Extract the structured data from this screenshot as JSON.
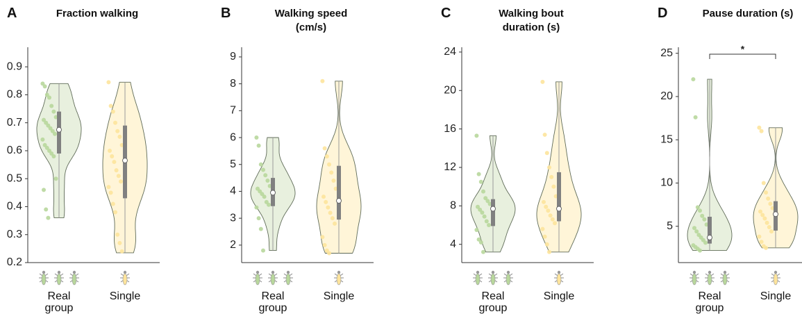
{
  "chart_data": [
    {
      "type": "violin",
      "label": "A",
      "title": "Fraction walking",
      "categories": [
        "Real\ngroup",
        "Single"
      ],
      "ylim": [
        0.2,
        0.97
      ],
      "yticks": [
        0.2,
        0.3,
        0.4,
        0.5,
        0.6,
        0.7,
        0.8,
        0.9
      ],
      "series": [
        {
          "name": "Real group",
          "color": "#b8d79c",
          "fill": "#e8f0de",
          "median": 0.675,
          "q1": 0.59,
          "q3": 0.74,
          "min": 0.36,
          "max": 0.84,
          "points": [
            0.84,
            0.83,
            0.8,
            0.79,
            0.76,
            0.74,
            0.72,
            0.71,
            0.7,
            0.69,
            0.68,
            0.67,
            0.66,
            0.64,
            0.62,
            0.61,
            0.6,
            0.59,
            0.58,
            0.5,
            0.46,
            0.39,
            0.36
          ]
        },
        {
          "name": "Single",
          "color": "#fde49c",
          "fill": "#fff5d8",
          "median": 0.565,
          "q1": 0.43,
          "q3": 0.69,
          "min": 0.235,
          "max": 0.845,
          "points": [
            0.845,
            0.76,
            0.74,
            0.7,
            0.67,
            0.65,
            0.62,
            0.6,
            0.58,
            0.56,
            0.53,
            0.51,
            0.49,
            0.47,
            0.45,
            0.41,
            0.38,
            0.3,
            0.27,
            0.24
          ]
        }
      ]
    },
    {
      "type": "violin",
      "label": "B",
      "title": "Walking speed\n(cm/s)",
      "categories": [
        "Real\ngroup",
        "Single"
      ],
      "ylim": [
        1.35,
        9.36
      ],
      "yticks": [
        2,
        3,
        4,
        5,
        6,
        7,
        8,
        9
      ],
      "series": [
        {
          "name": "Real group",
          "color": "#b8d79c",
          "fill": "#e8f0de",
          "median": 3.95,
          "q1": 3.45,
          "q3": 4.5,
          "min": 1.8,
          "max": 6.0,
          "points": [
            6.0,
            5.7,
            5.0,
            4.8,
            4.6,
            4.4,
            4.2,
            4.1,
            4.0,
            3.9,
            3.8,
            3.6,
            3.5,
            3.4,
            3.0,
            2.6,
            1.8
          ]
        },
        {
          "name": "Single",
          "color": "#fde49c",
          "fill": "#fff5d8",
          "median": 3.65,
          "q1": 2.95,
          "q3": 4.95,
          "min": 1.7,
          "max": 8.1,
          "points": [
            8.1,
            5.6,
            5.3,
            5.0,
            4.7,
            4.4,
            4.1,
            3.8,
            3.6,
            3.4,
            3.2,
            3.0,
            2.8,
            2.3,
            2.0,
            1.8,
            1.7
          ]
        }
      ]
    },
    {
      "type": "violin",
      "label": "C",
      "title": "Walking bout\nduration (s)",
      "categories": [
        "Real\ngroup",
        "Single"
      ],
      "ylim": [
        2.1,
        24.5
      ],
      "yticks": [
        4,
        8,
        12,
        16,
        20,
        24
      ],
      "series": [
        {
          "name": "Real group",
          "color": "#b8d79c",
          "fill": "#e8f0de",
          "median": 7.7,
          "q1": 5.9,
          "q3": 8.7,
          "min": 3.2,
          "max": 15.3,
          "points": [
            15.3,
            11.3,
            10.5,
            9.5,
            8.8,
            8.5,
            8.2,
            7.9,
            7.6,
            7.3,
            6.9,
            6.4,
            6.0,
            5.5,
            4.5,
            4.2,
            3.2
          ]
        },
        {
          "name": "Single",
          "color": "#fde49c",
          "fill": "#fff5d8",
          "median": 7.7,
          "q1": 6.4,
          "q3": 11.5,
          "min": 3.2,
          "max": 20.9,
          "points": [
            20.9,
            15.4,
            13.5,
            12.0,
            11.0,
            10.0,
            9.0,
            8.4,
            7.9,
            7.5,
            7.0,
            6.6,
            6.2,
            5.6,
            4.8,
            4.0,
            3.2
          ]
        }
      ]
    },
    {
      "type": "violin",
      "label": "D",
      "title": "Pause duration (s)",
      "categories": [
        "Real\ngroup",
        "Single"
      ],
      "ylim": [
        0.8,
        25.7
      ],
      "yticks": [
        5,
        10,
        15,
        20,
        25
      ],
      "annotation": "*",
      "series": [
        {
          "name": "Real group",
          "color": "#b8d79c",
          "fill": "#e8f0de",
          "median": 3.7,
          "q1": 3.0,
          "q3": 6.1,
          "min": 2.2,
          "max": 22.0,
          "points": [
            22.0,
            17.6,
            7.2,
            6.8,
            6.2,
            5.8,
            5.2,
            4.8,
            4.4,
            4.0,
            3.7,
            3.4,
            3.1,
            2.8,
            2.6,
            2.4,
            2.2
          ]
        },
        {
          "name": "Single",
          "color": "#fde49c",
          "fill": "#fff5d8",
          "median": 6.4,
          "q1": 4.5,
          "q3": 7.9,
          "min": 2.5,
          "max": 16.4,
          "points": [
            16.4,
            16.0,
            10.0,
            8.9,
            8.2,
            7.6,
            7.1,
            6.7,
            6.3,
            5.9,
            5.4,
            4.9,
            4.4,
            3.8,
            3.2,
            2.7,
            2.5
          ]
        }
      ]
    }
  ]
}
